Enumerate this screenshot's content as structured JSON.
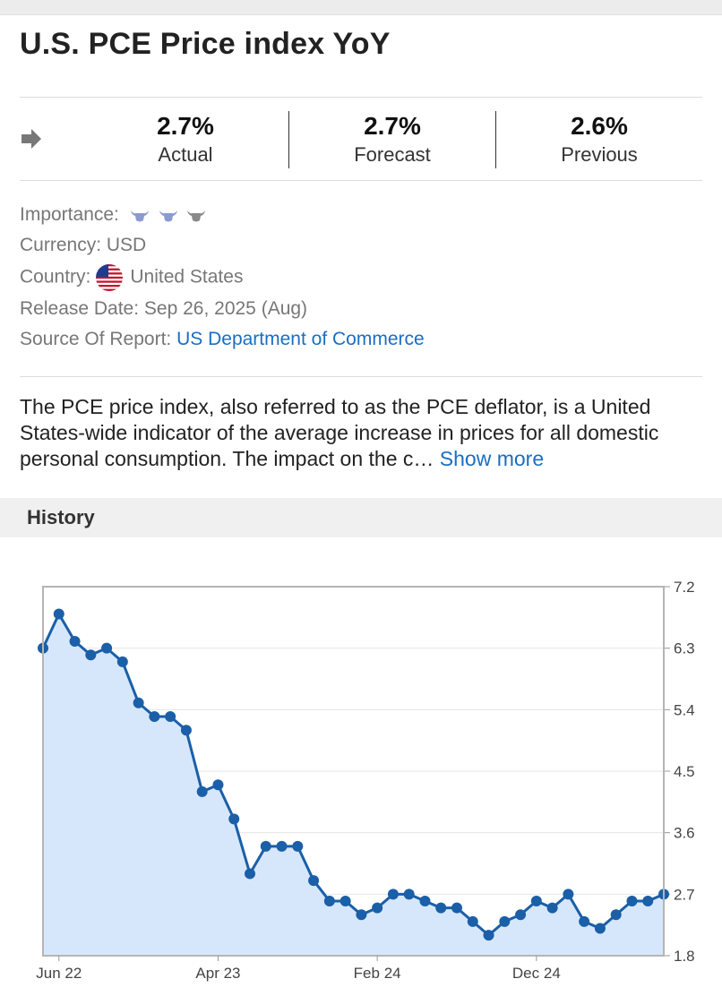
{
  "title": "U.S. PCE Price index YoY",
  "stats": {
    "actual": {
      "value": "2.7%",
      "label": "Actual"
    },
    "forecast": {
      "value": "2.7%",
      "label": "Forecast"
    },
    "previous": {
      "value": "2.6%",
      "label": "Previous"
    }
  },
  "meta": {
    "importance_label": "Importance:",
    "importance_level": 3,
    "currency_label": "Currency:",
    "currency_value": "USD",
    "country_label": "Country:",
    "country_value": "United States",
    "release_label": "Release Date:",
    "release_value": "Sep 26, 2025 (Aug)",
    "source_label": "Source Of Report:",
    "source_value": "US Department of Commerce"
  },
  "description": {
    "text": "The PCE price index, also referred to as the PCE deflator, is a United States-wide indicator of the average increase in prices for all domestic personal consumption. The impact on the c…",
    "show_more": "Show more"
  },
  "history": {
    "label": "History"
  },
  "colors": {
    "line": "#1a5fa8",
    "fill": "#d7e7fb",
    "link": "#1a6ec2"
  },
  "chart_data": {
    "type": "line",
    "x_ticks": [
      "Jun 22",
      "Apr 23",
      "Feb 24",
      "Dec 24"
    ],
    "y_ticks": [
      "7.2",
      "6.3",
      "5.4",
      "4.5",
      "3.6",
      "2.7",
      "1.8"
    ],
    "ylim": [
      1.8,
      7.2
    ],
    "x": [
      "May 22",
      "Jun 22",
      "Jul 22",
      "Aug 22",
      "Sep 22",
      "Oct 22",
      "Nov 22",
      "Dec 22",
      "Jan 23",
      "Feb 23",
      "Mar 23",
      "Apr 23",
      "May 23",
      "Jun 23",
      "Jul 23",
      "Aug 23",
      "Sep 23",
      "Oct 23",
      "Nov 23",
      "Dec 23",
      "Jan 24",
      "Feb 24",
      "Mar 24",
      "Apr 24",
      "May 24",
      "Jun 24",
      "Jul 24",
      "Aug 24",
      "Sep 24",
      "Oct 24",
      "Nov 24",
      "Dec 24",
      "Jan 25",
      "Feb 25",
      "Mar 25",
      "Apr 25",
      "May 25",
      "Jun 25",
      "Jul 25",
      "Aug 25"
    ],
    "values": [
      6.3,
      6.8,
      6.4,
      6.2,
      6.3,
      6.1,
      5.5,
      5.3,
      5.3,
      5.1,
      4.2,
      4.3,
      3.8,
      3.0,
      3.4,
      3.4,
      3.4,
      2.9,
      2.6,
      2.6,
      2.4,
      2.5,
      2.7,
      2.7,
      2.6,
      2.5,
      2.5,
      2.3,
      2.1,
      2.3,
      2.4,
      2.6,
      2.5,
      2.7,
      2.3,
      2.2,
      2.4,
      2.6,
      2.6,
      2.7
    ],
    "grid": true,
    "legend": "none"
  }
}
